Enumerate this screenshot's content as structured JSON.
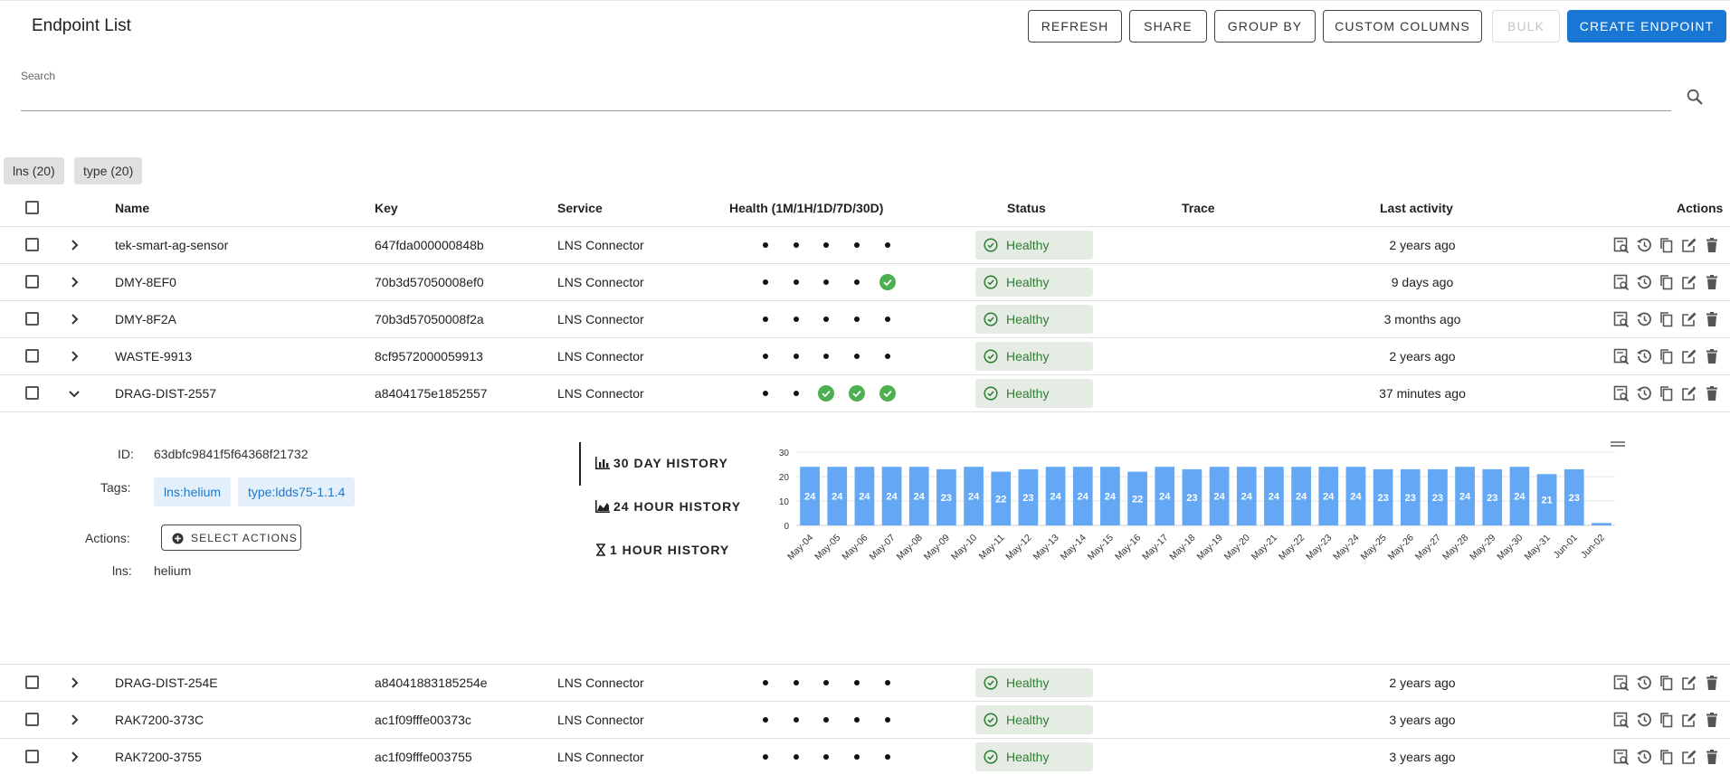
{
  "header": {
    "title": "Endpoint List",
    "buttons": {
      "refresh": "REFRESH",
      "share": "SHARE",
      "group_by": "GROUP BY",
      "custom_columns": "CUSTOM COLUMNS",
      "bulk": "BULK",
      "create": "CREATE ENDPOINT"
    }
  },
  "search": {
    "label": "Search"
  },
  "chips": [
    "lns (20)",
    "type (20)"
  ],
  "columns": {
    "name": "Name",
    "key": "Key",
    "service": "Service",
    "health": "Health (1M/1H/1D/7D/30D)",
    "status": "Status",
    "trace": "Trace",
    "last_activity": "Last activity",
    "actions": "Actions"
  },
  "rows": [
    {
      "name": "tek-smart-ag-sensor",
      "key": "647fda000000848b",
      "service": "LNS Connector",
      "health": [
        "dot",
        "dot",
        "dot",
        "dot",
        "dot"
      ],
      "status": "Healthy",
      "last": "2 years ago",
      "expanded": false
    },
    {
      "name": "DMY-8EF0",
      "key": "70b3d57050008ef0",
      "service": "LNS Connector",
      "health": [
        "dot",
        "dot",
        "dot",
        "dot",
        "check"
      ],
      "status": "Healthy",
      "last": "9 days ago",
      "expanded": false
    },
    {
      "name": "DMY-8F2A",
      "key": "70b3d57050008f2a",
      "service": "LNS Connector",
      "health": [
        "dot",
        "dot",
        "dot",
        "dot",
        "dot"
      ],
      "status": "Healthy",
      "last": "3 months ago",
      "expanded": false
    },
    {
      "name": "WASTE-9913",
      "key": "8cf9572000059913",
      "service": "LNS Connector",
      "health": [
        "dot",
        "dot",
        "dot",
        "dot",
        "dot"
      ],
      "status": "Healthy",
      "last": "2 years ago",
      "expanded": false
    },
    {
      "name": "DRAG-DIST-2557",
      "key": "a8404175e1852557",
      "service": "LNS Connector",
      "health": [
        "dot",
        "dot",
        "check",
        "check",
        "check"
      ],
      "status": "Healthy",
      "last": "37 minutes ago",
      "expanded": true
    },
    {
      "name": "DRAG-DIST-254E",
      "key": "a84041883185254e",
      "service": "LNS Connector",
      "health": [
        "dot",
        "dot",
        "dot",
        "dot",
        "dot"
      ],
      "status": "Healthy",
      "last": "2 years ago",
      "expanded": false
    },
    {
      "name": "RAK7200-373C",
      "key": "ac1f09fffe00373c",
      "service": "LNS Connector",
      "health": [
        "dot",
        "dot",
        "dot",
        "dot",
        "dot"
      ],
      "status": "Healthy",
      "last": "3 years ago",
      "expanded": false
    },
    {
      "name": "RAK7200-3755",
      "key": "ac1f09fffe003755",
      "service": "LNS Connector",
      "health": [
        "dot",
        "dot",
        "dot",
        "dot",
        "dot"
      ],
      "status": "Healthy",
      "last": "3 years ago",
      "expanded": false
    }
  ],
  "detail": {
    "id_label": "ID:",
    "id_value": "63dbfc9841f5f64368f21732",
    "tags_label": "Tags:",
    "tags": [
      "lns:helium",
      "type:ldds75-1.1.4"
    ],
    "actions_label": "Actions:",
    "select_actions": "SELECT ACTIONS",
    "lns_label": "lns:",
    "lns_value": "helium",
    "history_tabs": [
      "30 DAY HISTORY",
      "24 HOUR HISTORY",
      "1 HOUR HISTORY"
    ]
  },
  "colors": {
    "primary": "#1976d2",
    "bar": "#64a8f5",
    "healthy_bg": "#e4ece4",
    "healthy_text": "#2e7d32",
    "check": "#4caf50"
  },
  "chart_data": {
    "type": "bar",
    "categories": [
      "May-04",
      "May-05",
      "May-06",
      "May-07",
      "May-08",
      "May-09",
      "May-10",
      "May-11",
      "May-12",
      "May-13",
      "May-14",
      "May-15",
      "May-16",
      "May-17",
      "May-18",
      "May-19",
      "May-20",
      "May-21",
      "May-22",
      "May-23",
      "May-24",
      "May-25",
      "May-26",
      "May-27",
      "May-28",
      "May-29",
      "May-30",
      "May-31",
      "Jun-01",
      "Jun-02"
    ],
    "values": [
      24,
      24,
      24,
      24,
      24,
      23,
      24,
      22,
      23,
      24,
      24,
      24,
      22,
      24,
      23,
      24,
      24,
      24,
      24,
      24,
      24,
      23,
      23,
      23,
      24,
      23,
      24,
      21,
      23,
      1
    ],
    "ylim": [
      0,
      30
    ],
    "yticks": [
      0,
      10,
      20,
      30
    ],
    "data_labels": true,
    "title": "",
    "xlabel": "",
    "ylabel": ""
  }
}
